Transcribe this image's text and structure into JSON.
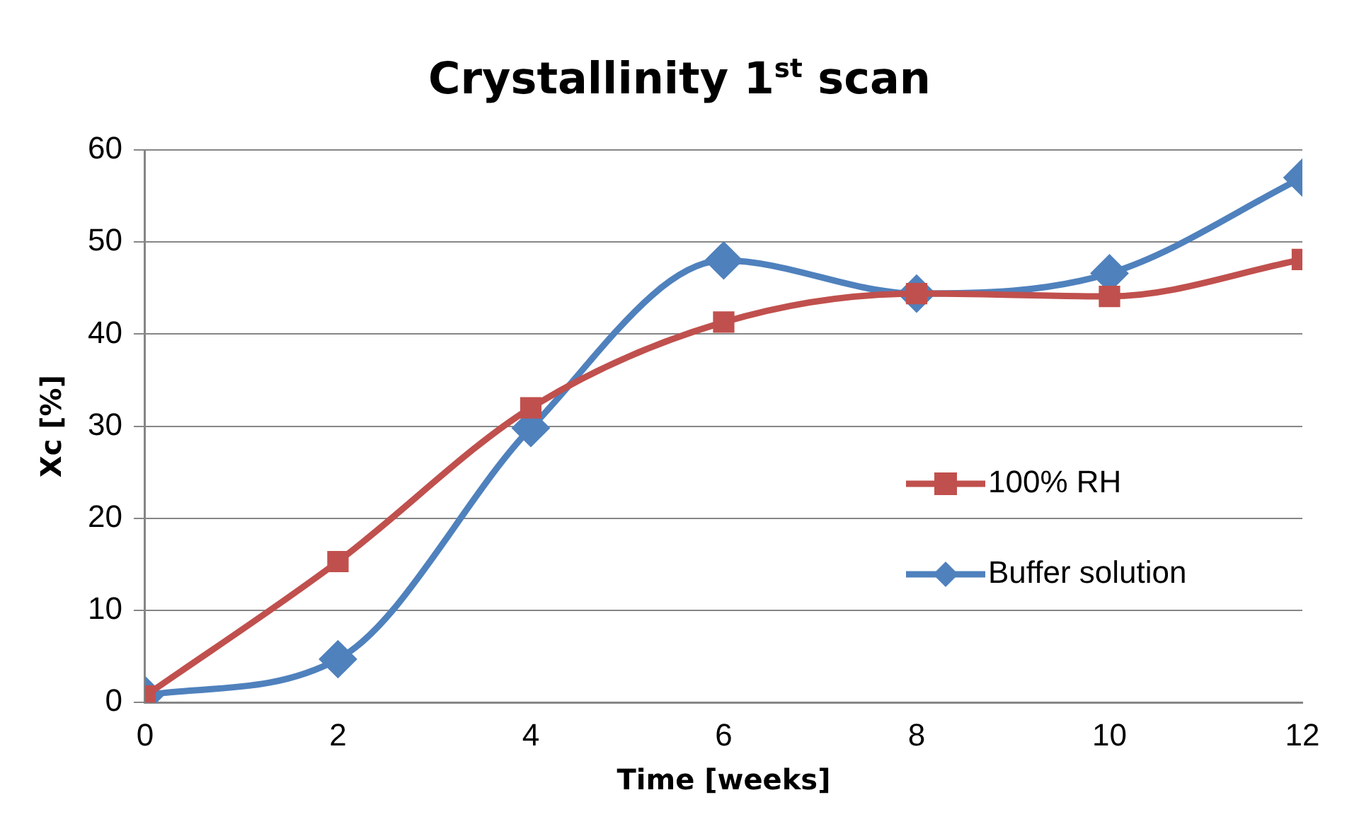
{
  "chart_data": {
    "type": "line",
    "title": "Crystallinity 1$^{st}$ scan",
    "xlabel": "Time [weeks]",
    "ylabel": "Xc [%]",
    "x": [
      0,
      2,
      4,
      6,
      8,
      10,
      12
    ],
    "series": [
      {
        "name": "100% RH",
        "color": "#c0504d",
        "marker": "square",
        "values": [
          0.7,
          15.3,
          32.0,
          41.3,
          44.4,
          44.1,
          48.1
        ]
      },
      {
        "name": "Buffer solution",
        "color": "#4f81bd",
        "marker": "diamond",
        "values": [
          0.8,
          4.7,
          29.8,
          48.0,
          44.4,
          46.6,
          57.0
        ]
      }
    ],
    "xlim": [
      0,
      12
    ],
    "xticks": [
      0,
      2,
      4,
      6,
      8,
      10,
      12
    ],
    "ylim": [
      0,
      60
    ],
    "yticks": [
      0,
      10,
      20,
      30,
      40,
      50,
      60
    ],
    "grid": "y",
    "legend": "right"
  }
}
